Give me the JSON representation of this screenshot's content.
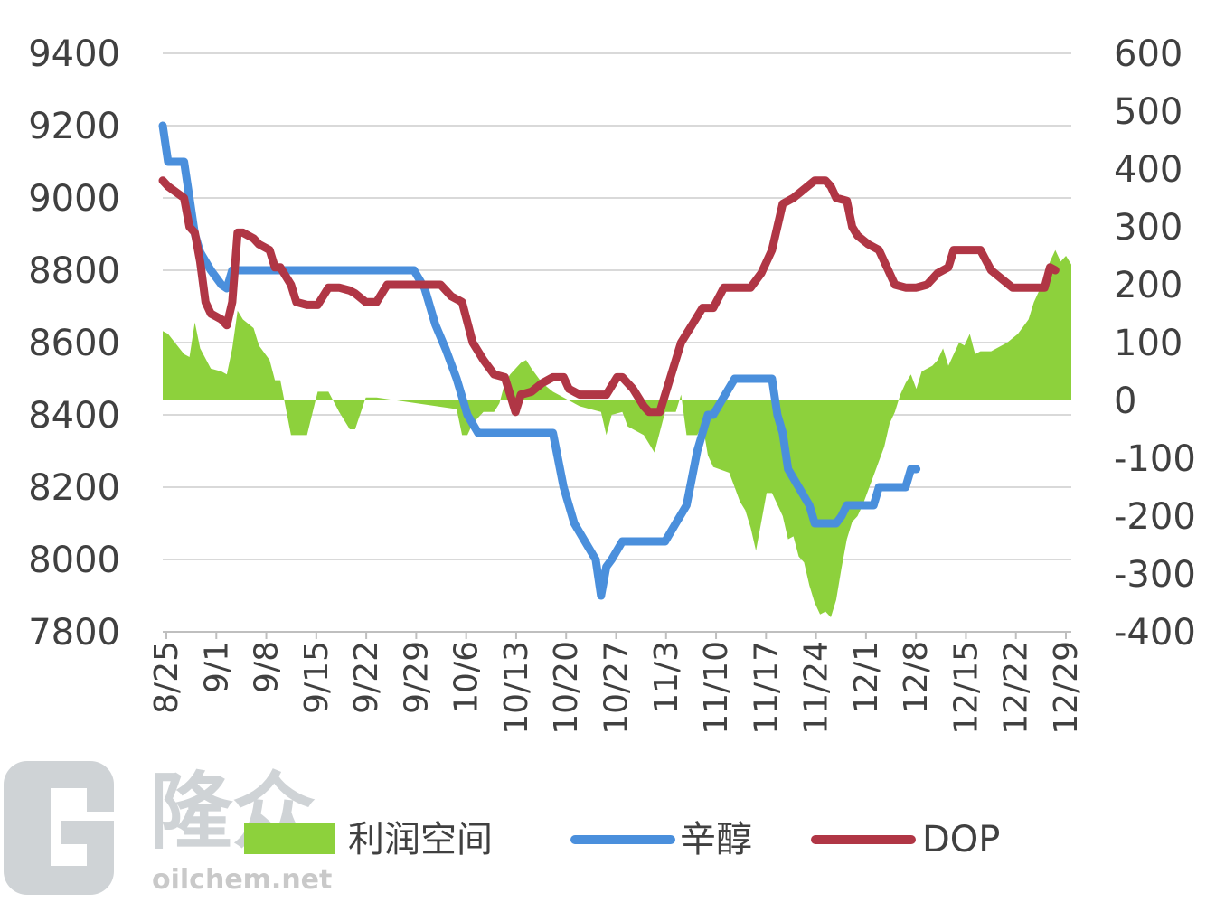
{
  "watermark": {
    "brand_cn": "隆众",
    "domain": "oilchem.net",
    "color": "#cfd3d6"
  },
  "chart_data": {
    "type": "line",
    "title": "",
    "xlabel": "",
    "ylabel": "",
    "y_left": {
      "min": 7800,
      "max": 9400,
      "step": 200,
      "ticks": [
        "9400",
        "9200",
        "9000",
        "8800",
        "8600",
        "8400",
        "8200",
        "8000",
        "7800"
      ]
    },
    "y_right": {
      "min": -400,
      "max": 600,
      "step": 100,
      "ticks": [
        "600",
        "500",
        "400",
        "300",
        "200",
        "100",
        "0",
        "-100",
        "-200",
        "-300",
        "-400"
      ]
    },
    "x_tick_labels": [
      "8/25",
      "9/1",
      "9/8",
      "9/15",
      "9/22",
      "9/29",
      "10/6",
      "10/13",
      "10/20",
      "10/27",
      "11/3",
      "11/10",
      "11/17",
      "11/24",
      "12/1",
      "12/8",
      "12/15",
      "12/22",
      "12/29"
    ],
    "x_range_days": [
      0,
      126
    ],
    "grid": true,
    "legend": {
      "position": "bottom",
      "entries": [
        "利润空间",
        "辛醇",
        "DOP"
      ]
    },
    "colors": {
      "profit": "#8dd13c",
      "octanol": "#4a8fdc",
      "dop": "#b03645",
      "grid": "#d9d9d9"
    },
    "series": [
      {
        "name": "利润空间",
        "axis": "right",
        "kind": "area",
        "points": [
          [
            0,
            120
          ],
          [
            1,
            115
          ],
          [
            4,
            80
          ],
          [
            5,
            75
          ],
          [
            6,
            135
          ],
          [
            7,
            90
          ],
          [
            9,
            55
          ],
          [
            11,
            50
          ],
          [
            12,
            45
          ],
          [
            13,
            90
          ],
          [
            14,
            155
          ],
          [
            15,
            140
          ],
          [
            17,
            125
          ],
          [
            18,
            95
          ],
          [
            20,
            70
          ],
          [
            21,
            35
          ],
          [
            22,
            35
          ],
          [
            24,
            -60
          ],
          [
            27,
            -60
          ],
          [
            29,
            15
          ],
          [
            31,
            15
          ],
          [
            33,
            -20
          ],
          [
            35,
            -50
          ],
          [
            36,
            -50
          ],
          [
            38,
            5
          ],
          [
            40,
            5
          ],
          [
            55,
            -15
          ],
          [
            56,
            -60
          ],
          [
            57,
            -60
          ],
          [
            58,
            -40
          ],
          [
            60,
            -20
          ],
          [
            62,
            -20
          ],
          [
            63,
            -5
          ],
          [
            64,
            30
          ],
          [
            65,
            45
          ],
          [
            67,
            65
          ],
          [
            68,
            70
          ],
          [
            69,
            55
          ],
          [
            71,
            30
          ],
          [
            73,
            15
          ],
          [
            75,
            5
          ],
          [
            78,
            -10
          ],
          [
            80,
            -15
          ],
          [
            82,
            -20
          ],
          [
            83,
            -60
          ],
          [
            84,
            -25
          ],
          [
            86,
            -20
          ],
          [
            87,
            -45
          ],
          [
            90,
            -60
          ],
          [
            92,
            -90
          ],
          [
            94,
            -20
          ],
          [
            96,
            -20
          ],
          [
            97,
            10
          ],
          [
            98,
            -60
          ],
          [
            100,
            -60
          ],
          [
            101,
            -40
          ],
          [
            102,
            -95
          ],
          [
            103,
            -115
          ],
          [
            106,
            -125
          ],
          [
            107,
            -150
          ],
          [
            108,
            -175
          ],
          [
            109,
            -190
          ],
          [
            110,
            -220
          ],
          [
            111,
            -260
          ],
          [
            113,
            -160
          ],
          [
            114,
            -160
          ],
          [
            115,
            -180
          ],
          [
            116,
            -200
          ],
          [
            117,
            -240
          ],
          [
            118,
            -235
          ],
          [
            119,
            -270
          ],
          [
            120,
            -280
          ],
          [
            121,
            -320
          ],
          [
            122,
            -350
          ],
          [
            123,
            -370
          ],
          [
            124,
            -365
          ],
          [
            125,
            -375
          ],
          [
            126,
            -345
          ],
          [
            127,
            -290
          ],
          [
            128,
            -240
          ],
          [
            129,
            -210
          ],
          [
            130,
            -200
          ],
          [
            131,
            -180
          ],
          [
            133,
            -130
          ],
          [
            135,
            -80
          ],
          [
            136,
            -40
          ],
          [
            137,
            -20
          ],
          [
            138,
            10
          ],
          [
            139,
            30
          ],
          [
            140,
            45
          ],
          [
            141,
            20
          ],
          [
            142,
            50
          ],
          [
            144,
            60
          ],
          [
            145,
            70
          ],
          [
            146,
            90
          ],
          [
            147,
            60
          ],
          [
            149,
            100
          ],
          [
            150,
            95
          ],
          [
            151,
            115
          ],
          [
            152,
            80
          ],
          [
            153,
            85
          ],
          [
            155,
            85
          ],
          [
            158,
            100
          ],
          [
            160,
            115
          ],
          [
            162,
            140
          ],
          [
            163,
            170
          ],
          [
            165,
            210
          ],
          [
            166,
            240
          ],
          [
            167,
            260
          ],
          [
            168,
            240
          ],
          [
            169,
            250
          ],
          [
            170,
            235
          ]
        ]
      },
      {
        "name": "辛醇",
        "axis": "left",
        "kind": "line",
        "points": [
          [
            0,
            9200
          ],
          [
            1,
            9100
          ],
          [
            4,
            9100
          ],
          [
            5,
            9000
          ],
          [
            6,
            8900
          ],
          [
            7,
            8850
          ],
          [
            9,
            8800
          ],
          [
            11,
            8760
          ],
          [
            12,
            8750
          ],
          [
            13,
            8800
          ],
          [
            14,
            8800
          ],
          [
            47,
            8800
          ],
          [
            49,
            8750
          ],
          [
            51,
            8650
          ],
          [
            53,
            8580
          ],
          [
            55,
            8500
          ],
          [
            56,
            8450
          ],
          [
            57,
            8400
          ],
          [
            59,
            8350
          ],
          [
            61,
            8350
          ],
          [
            67,
            8350
          ],
          [
            73,
            8350
          ],
          [
            75,
            8200
          ],
          [
            77,
            8100
          ],
          [
            79,
            8050
          ],
          [
            81,
            8000
          ],
          [
            82,
            7900
          ],
          [
            83,
            7980
          ],
          [
            84,
            8000
          ],
          [
            86,
            8050
          ],
          [
            94,
            8050
          ],
          [
            96,
            8100
          ],
          [
            98,
            8150
          ],
          [
            100,
            8300
          ],
          [
            102,
            8400
          ],
          [
            103,
            8400
          ],
          [
            105,
            8450
          ],
          [
            107,
            8500
          ],
          [
            114,
            8500
          ],
          [
            115,
            8400
          ],
          [
            116,
            8350
          ],
          [
            117,
            8250
          ],
          [
            119,
            8200
          ],
          [
            121,
            8150
          ],
          [
            122,
            8100
          ],
          [
            124,
            8100
          ],
          [
            125,
            8100
          ],
          [
            126,
            8100
          ],
          [
            127,
            8120
          ],
          [
            128,
            8150
          ],
          [
            133,
            8150
          ],
          [
            134,
            8200
          ],
          [
            139,
            8200
          ],
          [
            140,
            8250
          ],
          [
            141,
            8250
          ]
        ]
      },
      {
        "name": "DOP",
        "axis": "right",
        "kind": "line",
        "points": [
          [
            0,
            380
          ],
          [
            1,
            370
          ],
          [
            4,
            350
          ],
          [
            5,
            300
          ],
          [
            6,
            290
          ],
          [
            7,
            240
          ],
          [
            8,
            170
          ],
          [
            9,
            150
          ],
          [
            10,
            145
          ],
          [
            11,
            140
          ],
          [
            12,
            130
          ],
          [
            13,
            170
          ],
          [
            14,
            290
          ],
          [
            15,
            290
          ],
          [
            17,
            280
          ],
          [
            18,
            270
          ],
          [
            20,
            260
          ],
          [
            21,
            230
          ],
          [
            22,
            230
          ],
          [
            24,
            200
          ],
          [
            25,
            170
          ],
          [
            27,
            165
          ],
          [
            29,
            165
          ],
          [
            31,
            195
          ],
          [
            33,
            195
          ],
          [
            35,
            190
          ],
          [
            36,
            185
          ],
          [
            38,
            170
          ],
          [
            40,
            170
          ],
          [
            42,
            200
          ],
          [
            52,
            200
          ],
          [
            54,
            180
          ],
          [
            56,
            170
          ],
          [
            58,
            100
          ],
          [
            60,
            70
          ],
          [
            62,
            45
          ],
          [
            64,
            40
          ],
          [
            65,
            10
          ],
          [
            66,
            -20
          ],
          [
            67,
            10
          ],
          [
            69,
            15
          ],
          [
            71,
            30
          ],
          [
            73,
            40
          ],
          [
            75,
            40
          ],
          [
            76,
            20
          ],
          [
            78,
            10
          ],
          [
            83,
            10
          ],
          [
            85,
            40
          ],
          [
            86,
            40
          ],
          [
            88,
            20
          ],
          [
            90,
            -10
          ],
          [
            91,
            -20
          ],
          [
            93,
            -20
          ],
          [
            95,
            40
          ],
          [
            97,
            100
          ],
          [
            99,
            130
          ],
          [
            101,
            160
          ],
          [
            103,
            160
          ],
          [
            105,
            195
          ],
          [
            110,
            195
          ],
          [
            112,
            220
          ],
          [
            114,
            260
          ],
          [
            116,
            340
          ],
          [
            118,
            350
          ],
          [
            120,
            365
          ],
          [
            122,
            380
          ],
          [
            124,
            380
          ],
          [
            125,
            370
          ],
          [
            126,
            350
          ],
          [
            128,
            345
          ],
          [
            129,
            300
          ],
          [
            130,
            285
          ],
          [
            132,
            270
          ],
          [
            134,
            260
          ],
          [
            135,
            240
          ],
          [
            137,
            200
          ],
          [
            139,
            195
          ],
          [
            141,
            195
          ],
          [
            143,
            200
          ],
          [
            145,
            220
          ],
          [
            147,
            230
          ],
          [
            148,
            260
          ],
          [
            153,
            260
          ],
          [
            155,
            225
          ],
          [
            157,
            210
          ],
          [
            159,
            195
          ],
          [
            165,
            195
          ],
          [
            166,
            230
          ],
          [
            167,
            225
          ]
        ]
      }
    ]
  }
}
